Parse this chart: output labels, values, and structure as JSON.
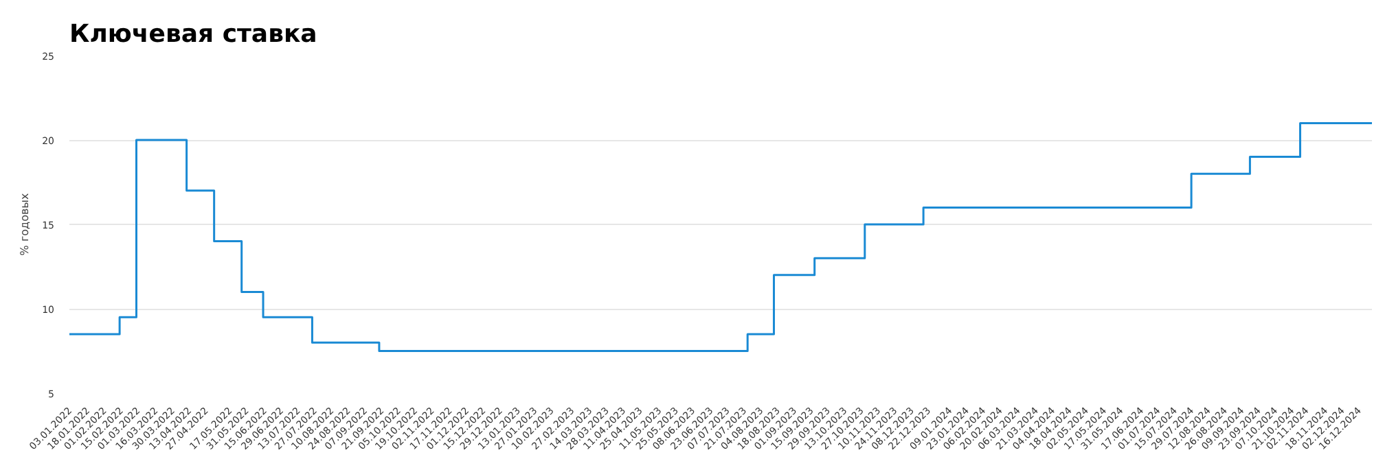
{
  "chart_data": {
    "type": "step",
    "title": "Ключевая ставка",
    "ylabel": "% годовых",
    "x": [
      "2022-01-03",
      "2022-02-14",
      "2022-02-28",
      "2022-04-11",
      "2022-05-04",
      "2022-05-27",
      "2022-06-14",
      "2022-07-25",
      "2022-09-19",
      "2023-07-24",
      "2023-08-15",
      "2023-09-18",
      "2023-10-30",
      "2023-12-18",
      "2024-07-29",
      "2024-09-16",
      "2024-10-28",
      "2024-12-27"
    ],
    "series": [
      {
        "color": "#1a8ad4",
        "values": [
          8.5,
          9.5,
          20,
          17,
          14,
          11,
          9.5,
          8,
          7.5,
          8.5,
          12,
          13,
          15,
          16,
          18,
          19,
          21,
          21
        ]
      }
    ],
    "xlim": [
      "2022-01-03",
      "2024-12-27"
    ],
    "ylim": [
      5,
      25
    ],
    "yticks": [
      5,
      10,
      15,
      20,
      25
    ],
    "grid": "y",
    "line_style": "solid",
    "xticks": [
      {
        "value": "2022-01-03",
        "label": "03.01.2022"
      },
      {
        "value": "2022-01-18",
        "label": "18.01.2022"
      },
      {
        "value": "2022-02-01",
        "label": "01.02.2022"
      },
      {
        "value": "2022-02-15",
        "label": "15.02.2022"
      },
      {
        "value": "2022-03-01",
        "label": "01.03.2022"
      },
      {
        "value": "2022-03-16",
        "label": "16.03.2022"
      },
      {
        "value": "2022-03-30",
        "label": "30.03.2022"
      },
      {
        "value": "2022-04-13",
        "label": "13.04.2022"
      },
      {
        "value": "2022-04-27",
        "label": "27.04.2022"
      },
      {
        "value": "2022-05-17",
        "label": "17.05.2022"
      },
      {
        "value": "2022-05-31",
        "label": "31.05.2022"
      },
      {
        "value": "2022-06-15",
        "label": "15.06.2022"
      },
      {
        "value": "2022-06-29",
        "label": "29.06.2022"
      },
      {
        "value": "2022-07-13",
        "label": "13.07.2022"
      },
      {
        "value": "2022-07-27",
        "label": "27.07.2022"
      },
      {
        "value": "2022-08-10",
        "label": "10.08.2022"
      },
      {
        "value": "2022-08-24",
        "label": "24.08.2022"
      },
      {
        "value": "2022-09-07",
        "label": "07.09.2022"
      },
      {
        "value": "2022-09-21",
        "label": "21.09.2022"
      },
      {
        "value": "2022-10-05",
        "label": "05.10.2022"
      },
      {
        "value": "2022-10-19",
        "label": "19.10.2022"
      },
      {
        "value": "2022-11-02",
        "label": "02.11.2022"
      },
      {
        "value": "2022-11-17",
        "label": "17.11.2022"
      },
      {
        "value": "2022-12-01",
        "label": "01.12.2022"
      },
      {
        "value": "2022-12-15",
        "label": "15.12.2022"
      },
      {
        "value": "2022-12-29",
        "label": "29.12.2022"
      },
      {
        "value": "2023-01-13",
        "label": "13.01.2023"
      },
      {
        "value": "2023-01-27",
        "label": "27.01.2023"
      },
      {
        "value": "2023-02-10",
        "label": "10.02.2023"
      },
      {
        "value": "2023-02-27",
        "label": "27.02.2023"
      },
      {
        "value": "2023-03-14",
        "label": "14.03.2023"
      },
      {
        "value": "2023-03-28",
        "label": "28.03.2023"
      },
      {
        "value": "2023-04-11",
        "label": "11.04.2023"
      },
      {
        "value": "2023-04-25",
        "label": "25.04.2023"
      },
      {
        "value": "2023-05-11",
        "label": "11.05.2023"
      },
      {
        "value": "2023-05-25",
        "label": "25.05.2023"
      },
      {
        "value": "2023-06-08",
        "label": "08.06.2023"
      },
      {
        "value": "2023-06-23",
        "label": "23.06.2023"
      },
      {
        "value": "2023-07-07",
        "label": "07.07.2023"
      },
      {
        "value": "2023-07-21",
        "label": "21.07.2023"
      },
      {
        "value": "2023-08-04",
        "label": "04.08.2023"
      },
      {
        "value": "2023-08-18",
        "label": "18.08.2023"
      },
      {
        "value": "2023-09-01",
        "label": "01.09.2023"
      },
      {
        "value": "2023-09-15",
        "label": "15.09.2023"
      },
      {
        "value": "2023-09-29",
        "label": "29.09.2023"
      },
      {
        "value": "2023-10-13",
        "label": "13.10.2023"
      },
      {
        "value": "2023-10-27",
        "label": "27.10.2023"
      },
      {
        "value": "2023-11-10",
        "label": "10.11.2023"
      },
      {
        "value": "2023-11-24",
        "label": "24.11.2023"
      },
      {
        "value": "2023-12-08",
        "label": "08.12.2023"
      },
      {
        "value": "2023-12-22",
        "label": "22.12.2023"
      },
      {
        "value": "2024-01-09",
        "label": "09.01.2024"
      },
      {
        "value": "2024-01-23",
        "label": "23.01.2024"
      },
      {
        "value": "2024-02-06",
        "label": "06.02.2024"
      },
      {
        "value": "2024-02-20",
        "label": "20.02.2024"
      },
      {
        "value": "2024-03-06",
        "label": "06.03.2024"
      },
      {
        "value": "2024-03-21",
        "label": "21.03.2024"
      },
      {
        "value": "2024-04-04",
        "label": "04.04.2024"
      },
      {
        "value": "2024-04-18",
        "label": "18.04.2024"
      },
      {
        "value": "2024-05-02",
        "label": "02.05.2024"
      },
      {
        "value": "2024-05-17",
        "label": "17.05.2024"
      },
      {
        "value": "2024-05-31",
        "label": "31.05.2024"
      },
      {
        "value": "2024-06-17",
        "label": "17.06.2024"
      },
      {
        "value": "2024-07-01",
        "label": "01.07.2024"
      },
      {
        "value": "2024-07-15",
        "label": "15.07.2024"
      },
      {
        "value": "2024-07-29",
        "label": "29.07.2024"
      },
      {
        "value": "2024-08-12",
        "label": "12.08.2024"
      },
      {
        "value": "2024-08-26",
        "label": "26.08.2024"
      },
      {
        "value": "2024-09-09",
        "label": "09.09.2024"
      },
      {
        "value": "2024-09-23",
        "label": "23.09.2024"
      },
      {
        "value": "2024-10-07",
        "label": "07.10.2024"
      },
      {
        "value": "2024-10-21",
        "label": "21.10.2024"
      },
      {
        "value": "2024-11-02",
        "label": "02.11.2024"
      },
      {
        "value": "2024-11-18",
        "label": "18.11.2024"
      },
      {
        "value": "2024-12-02",
        "label": "02.12.2024"
      },
      {
        "value": "2024-12-16",
        "label": "16.12.2024"
      }
    ]
  }
}
